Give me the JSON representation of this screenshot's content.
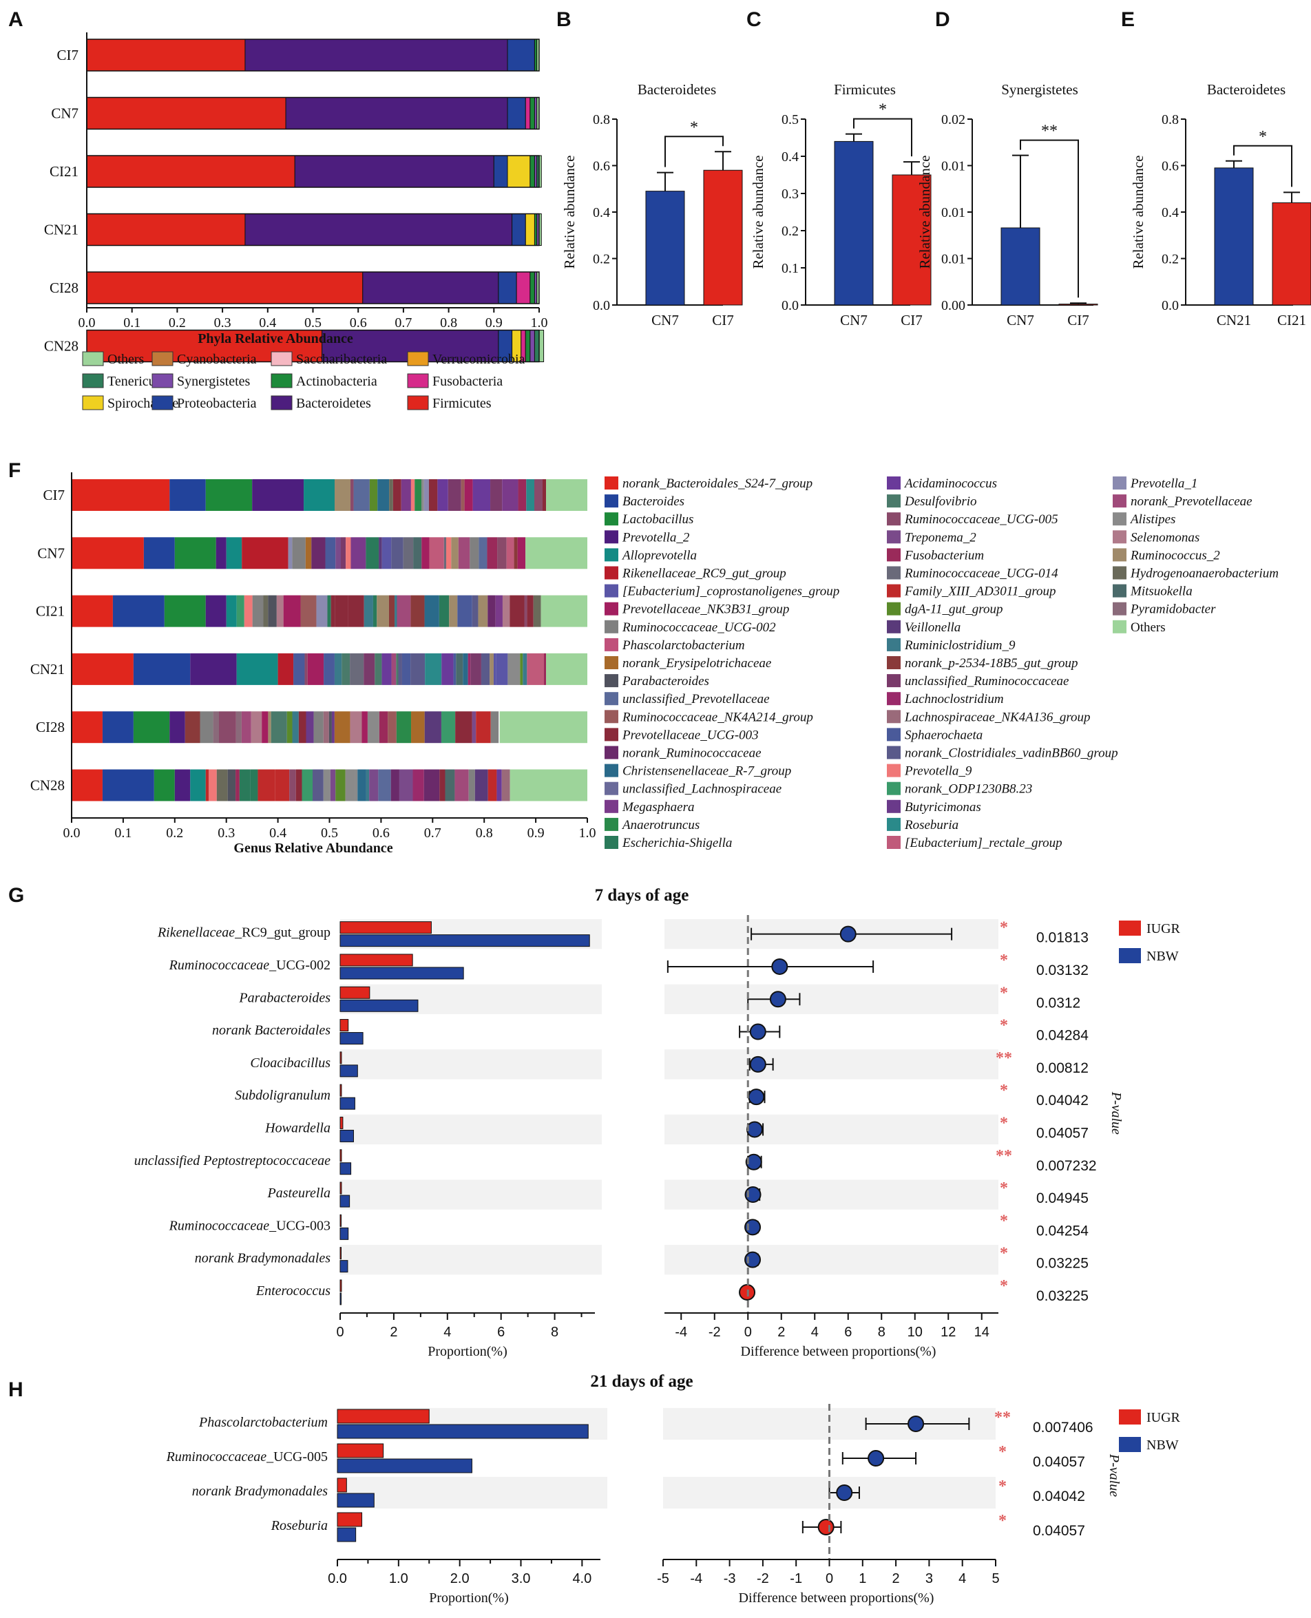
{
  "colors": {
    "red": "#e0261d",
    "blue": "#22439b",
    "purple": "#4d1e7e",
    "star": "#e06060",
    "Others": "#9dd49a",
    "Cyanobacteria": "#c07a3a",
    "Saccharibacteria": "#f5b8c2",
    "Verrucomicrobia": "#e89b1e",
    "Tenericutes": "#2f7d5a",
    "Synergistetes": "#7b4aa8",
    "Actinobacteria": "#1d8a3a",
    "Fusobacteria": "#d62a8a",
    "Spirochaetae": "#f0d020",
    "Proteobacteria": "#22439b",
    "Bacteroidetes": "#4d1e7e",
    "Firmicutes": "#e0261d"
  },
  "panel_letters": [
    "A",
    "B",
    "C",
    "D",
    "E",
    "F",
    "G",
    "H"
  ],
  "chart_data": [
    {
      "id": "A",
      "type": "bar",
      "orientation": "horizontal",
      "stacked": true,
      "xlabel": "Phyla Relative Abundance",
      "categories": [
        "CI7",
        "CN7",
        "CI21",
        "CN21",
        "CI28",
        "CN28"
      ],
      "xticks": [
        "0.0",
        "0.1",
        "0.2",
        "0.3",
        "0.4",
        "0.5",
        "0.6",
        "0.7",
        "0.8",
        "0.9",
        "1.0"
      ],
      "xlim": [
        0,
        1
      ],
      "series": [
        {
          "name": "Firmicutes",
          "values": [
            0.35,
            0.44,
            0.46,
            0.35,
            0.61,
            0.52
          ]
        },
        {
          "name": "Bacteroidetes",
          "values": [
            0.58,
            0.49,
            0.44,
            0.59,
            0.3,
            0.39
          ]
        },
        {
          "name": "Proteobacteria",
          "values": [
            0.06,
            0.04,
            0.03,
            0.03,
            0.04,
            0.03
          ]
        },
        {
          "name": "Spirochaetae",
          "values": [
            0.0,
            0.0,
            0.05,
            0.02,
            0.0,
            0.02
          ]
        },
        {
          "name": "Fusobacteria",
          "values": [
            0.0,
            0.01,
            0.0,
            0.0,
            0.03,
            0.01
          ]
        },
        {
          "name": "Actinobacteria",
          "values": [
            0.005,
            0.01,
            0.01,
            0.005,
            0.01,
            0.01
          ]
        },
        {
          "name": "Synergistetes",
          "values": [
            0.0,
            0.005,
            0.005,
            0.005,
            0.005,
            0.01
          ]
        },
        {
          "name": "Tenericutes",
          "values": [
            0.0,
            0.0,
            0.005,
            0.0,
            0.0,
            0.01
          ]
        },
        {
          "name": "Others",
          "values": [
            0.005,
            0.005,
            0.005,
            0.005,
            0.005,
            0.01
          ]
        }
      ],
      "legend": [
        "Others",
        "Cyanobacteria",
        "Saccharibacteria",
        "Verrucomicrobia",
        "Tenericutes",
        "Synergistetes",
        "Actinobacteria",
        "Fusobacteria",
        "Spirochaetae",
        "Proteobacteria",
        "Bacteroidetes",
        "Firmicutes"
      ]
    },
    {
      "id": "B",
      "type": "bar",
      "title": "Bacteroidetes",
      "ylabel": "Relative abundance",
      "categories": [
        "CN7",
        "CI7"
      ],
      "values": [
        0.49,
        0.58
      ],
      "errors": [
        0.08,
        0.08
      ],
      "ylim": [
        0,
        0.8
      ],
      "yticks": [
        "0.0",
        "0.2",
        "0.4",
        "0.6",
        "0.8"
      ],
      "significance": "*"
    },
    {
      "id": "C",
      "type": "bar",
      "title": "Firmicutes",
      "ylabel": "Relative abundance",
      "categories": [
        "CN7",
        "CI7"
      ],
      "values": [
        0.44,
        0.35
      ],
      "errors": [
        0.02,
        0.035
      ],
      "ylim": [
        0,
        0.5
      ],
      "yticks": [
        "0.0",
        "0.1",
        "0.2",
        "0.3",
        "0.4",
        "0.5"
      ],
      "significance": "*"
    },
    {
      "id": "D",
      "type": "bar",
      "title": "Synergistetes",
      "ylabel": "Relative abundance",
      "categories": [
        "CN7",
        "CI7"
      ],
      "values": [
        0.0083,
        0.0001
      ],
      "errors": [
        0.0078,
        0.0001
      ],
      "ylim": [
        0,
        0.02
      ],
      "yticks": [
        "0.00",
        "0.01",
        "0.01",
        "0.01",
        "0.02"
      ],
      "significance": "**"
    },
    {
      "id": "E",
      "type": "bar",
      "title": "Bacteroidetes",
      "ylabel": "Relative abundance",
      "categories": [
        "CN21",
        "CI21"
      ],
      "values": [
        0.59,
        0.44
      ],
      "errors": [
        0.03,
        0.045
      ],
      "ylim": [
        0,
        0.8
      ],
      "yticks": [
        "0.0",
        "0.2",
        "0.4",
        "0.6",
        "0.8"
      ],
      "significance": "*"
    },
    {
      "id": "F",
      "type": "bar",
      "orientation": "horizontal",
      "stacked": true,
      "xlabel": "Genus Relative Abundance",
      "categories": [
        "CI7",
        "CN7",
        "CI21",
        "CN21",
        "CI28",
        "CN28"
      ],
      "xticks": [
        "0.0",
        "0.1",
        "0.2",
        "0.3",
        "0.4",
        "0.5",
        "0.6",
        "0.7",
        "0.8",
        "0.9",
        "1.0"
      ],
      "xlim": [
        0,
        1
      ],
      "series": [
        {
          "name": "norank_Bacteroidales_S24-7_group",
          "values": [
            0.19,
            0.14,
            0.08,
            0.12,
            0.06,
            0.06
          ]
        },
        {
          "name": "Bacteroides",
          "values": [
            0.07,
            0.06,
            0.1,
            0.11,
            0.06,
            0.1
          ]
        },
        {
          "name": "Lactobacillus",
          "values": [
            0.09,
            0.08,
            0.08,
            0.0,
            0.07,
            0.04
          ]
        },
        {
          "name": "Prevotella_2",
          "values": [
            0.1,
            0.02,
            0.04,
            0.09,
            0.03,
            0.03
          ]
        },
        {
          "name": "Alloprevotella",
          "values": [
            0.06,
            0.03,
            0.02,
            0.08,
            0.0,
            0.03
          ]
        },
        {
          "name": "Rikenellaceae_RC9_gut_group",
          "values": [
            0.0,
            0.09,
            0.0,
            0.03,
            0.0,
            0.0
          ]
        }
      ],
      "genus_other_fraction": [
        0.08,
        0.12,
        0.09,
        0.08,
        0.17,
        0.15
      ],
      "legend": [
        "norank_Bacteroidales_S24-7_group",
        "Bacteroides",
        "Lactobacillus",
        "Prevotella_2",
        "Alloprevotella",
        "Rikenellaceae_RC9_gut_group",
        "[Eubacterium]_coprostanoligenes_group",
        "Prevotellaceae_NK3B31_group",
        "Ruminococcaceae_UCG-002",
        "Phascolarctobacterium",
        "norank_Erysipelotrichaceae",
        "Parabacteroides",
        "unclassified_Prevotellaceae",
        "Ruminococcaceae_NK4A214_group",
        "Prevotellaceae_UCG-003",
        "norank_Ruminococcaceae",
        "Christensenellaceae_R-7_group",
        "unclassified_Lachnospiraceae",
        "Megasphaera",
        "Anaerotruncus",
        "Escherichia-Shigella",
        "Acidaminococcus",
        "Desulfovibrio",
        "Ruminococcaceae_UCG-005",
        "Treponema_2",
        "Fusobacterium",
        "Ruminococcaceae_UCG-014",
        "Family_XIII_AD3011_group",
        "dgA-11_gut_group",
        "Veillonella",
        "Ruminiclostridium_9",
        "norank_p-2534-18B5_gut_group",
        "unclassified_Ruminococcaceae",
        "Lachnoclostridium",
        "Lachnospiraceae_NK4A136_group",
        "Sphaerochaeta",
        "norank_Clostridiales_vadinBB60_group",
        "Prevotella_9",
        "norank_ODP1230B8.23",
        "Butyricimonas",
        "Roseburia",
        "[Eubacterium]_rectale_group",
        "Prevotella_1",
        "norank_Prevotellaceae",
        "Alistipes",
        "Selenomonas",
        "Ruminococcus_2",
        "Hydrogenoanaerobacterium",
        "Mitsuokella",
        "Pyramidobacter",
        "Others"
      ],
      "legend_colors": [
        "#e0261d",
        "#22439b",
        "#1d8a3a",
        "#4d1e7e",
        "#138a84",
        "#b81d2a",
        "#5a56a6",
        "#a31f5f",
        "#808080",
        "#c0507a",
        "#a86a2a",
        "#50525e",
        "#5a6a9a",
        "#9a5a5a",
        "#8a2a3a",
        "#6a2a6a",
        "#2a6a8a",
        "#6a6a9a",
        "#7a3a8a",
        "#2a8a4a",
        "#2a7a5a",
        "#6a3a9a",
        "#4a7a6a",
        "#8a4a6a",
        "#7a4a8a",
        "#9a2a5a",
        "#6a6a7a",
        "#c02a2a",
        "#5a8a2a",
        "#5a3a7a",
        "#3a7a8a",
        "#8a3a3a",
        "#7a3a6a",
        "#9a2a6a",
        "#9a6a7a",
        "#4a5a9a",
        "#5a5a8a",
        "#f07878",
        "#3a9a6a",
        "#6a3a8a",
        "#2a8a8a",
        "#c05a7a",
        "#8a8ab0",
        "#a04a7a",
        "#8a8a8a",
        "#b07a8a",
        "#a08a6a",
        "#6a6a5a",
        "#4a6a6a",
        "#8a6a7a",
        "#9dd49a"
      ]
    },
    {
      "id": "G",
      "type": "bar",
      "title": "7 days of age",
      "xlabel_left": "Proportion(%)",
      "xlabel_right": "Difference between proportions(%)",
      "ylabel_right": "P-value",
      "groups": [
        "IUGR",
        "NBW"
      ],
      "taxa": [
        {
          "italic": "Rikenellaceae",
          "plain": "_RC9_gut_group",
          "iugr": 3.4,
          "nbw": 9.3,
          "diff": 6.0,
          "lo": 0.2,
          "hi": 12.2,
          "p": "0.01813",
          "sig": "*"
        },
        {
          "italic": "Ruminococcaceae",
          "plain": "_UCG-002",
          "iugr": 2.7,
          "nbw": 4.6,
          "diff": 1.9,
          "lo": -4.8,
          "hi": 7.5,
          "p": "0.03132",
          "sig": "*"
        },
        {
          "italic": "Parabacteroides",
          "plain": "",
          "iugr": 1.1,
          "nbw": 2.9,
          "diff": 1.8,
          "lo": 0.0,
          "hi": 3.1,
          "p": "0.0312",
          "sig": "*"
        },
        {
          "italic": "norank Bacteroidales",
          "plain": "",
          "iugr": 0.3,
          "nbw": 0.85,
          "diff": 0.6,
          "lo": -0.5,
          "hi": 1.9,
          "p": "0.04284",
          "sig": "*"
        },
        {
          "italic": "Cloacibacillus",
          "plain": "",
          "iugr": 0.05,
          "nbw": 0.65,
          "diff": 0.6,
          "lo": 0.1,
          "hi": 1.5,
          "p": "0.00812",
          "sig": "**"
        },
        {
          "italic": "Subdoligranulum",
          "plain": "",
          "iugr": 0.05,
          "nbw": 0.55,
          "diff": 0.5,
          "lo": 0.1,
          "hi": 1.0,
          "p": "0.04042",
          "sig": "*"
        },
        {
          "italic": "Howardella",
          "plain": "",
          "iugr": 0.1,
          "nbw": 0.5,
          "diff": 0.4,
          "lo": 0.0,
          "hi": 0.9,
          "p": "0.04057",
          "sig": "*"
        },
        {
          "italic": "unclassified Peptostreptococcaceae",
          "plain": "",
          "iugr": 0.05,
          "nbw": 0.4,
          "diff": 0.35,
          "lo": 0.0,
          "hi": 0.8,
          "p": "0.007232",
          "sig": "**"
        },
        {
          "italic": "Pasteurella",
          "plain": "",
          "iugr": 0.05,
          "nbw": 0.35,
          "diff": 0.3,
          "lo": 0.0,
          "hi": 0.7,
          "p": "0.04945",
          "sig": "*"
        },
        {
          "italic": "Ruminococcaceae",
          "plain": "_UCG-003",
          "iugr": 0.02,
          "nbw": 0.3,
          "diff": 0.28,
          "lo": 0.0,
          "hi": 0.6,
          "p": "0.04254",
          "sig": "*"
        },
        {
          "italic": "norank Bradymonadales",
          "plain": "",
          "iugr": 0.0,
          "nbw": 0.28,
          "diff": 0.28,
          "lo": 0.0,
          "hi": 0.6,
          "p": "0.03225",
          "sig": "*"
        },
        {
          "italic": "Enterococcus",
          "plain": "",
          "iugr": 0.05,
          "nbw": 0.0,
          "diff": -0.05,
          "lo": -0.1,
          "hi": 0.0,
          "p": "0.03225",
          "sig": "*"
        }
      ],
      "xlim_left": [
        0,
        9.5
      ],
      "xticks_left": [
        "0",
        "2",
        "4",
        "6",
        "8"
      ],
      "xlim_right": [
        -5,
        15
      ],
      "xticks_right": [
        "-4",
        "-2",
        "0",
        "2",
        "4",
        "6",
        "8",
        "10",
        "12",
        "14"
      ]
    },
    {
      "id": "H",
      "type": "bar",
      "title": "21 days of age",
      "xlabel_left": "Proportion(%)",
      "xlabel_right": "Difference between proportions(%)",
      "ylabel_right": "P-value",
      "groups": [
        "IUGR",
        "NBW"
      ],
      "taxa": [
        {
          "italic": "Phascolarctobacterium",
          "plain": "",
          "iugr": 1.5,
          "nbw": 4.1,
          "diff": 2.6,
          "lo": 1.1,
          "hi": 4.2,
          "p": "0.007406",
          "sig": "**"
        },
        {
          "italic": "Ruminococcaceae",
          "plain": "_UCG-005",
          "iugr": 0.75,
          "nbw": 2.2,
          "diff": 1.4,
          "lo": 0.4,
          "hi": 2.6,
          "p": "0.04057",
          "sig": "*"
        },
        {
          "italic": "norank Bradymonadales",
          "plain": "",
          "iugr": 0.15,
          "nbw": 0.6,
          "diff": 0.45,
          "lo": 0.0,
          "hi": 0.9,
          "p": "0.04042",
          "sig": "*"
        },
        {
          "italic": "Roseburia",
          "plain": "",
          "iugr": 0.4,
          "nbw": 0.3,
          "diff": -0.1,
          "lo": -0.8,
          "hi": 0.35,
          "p": "0.04057",
          "sig": "*"
        }
      ],
      "xlim_left": [
        0,
        4.3
      ],
      "xticks_left": [
        "0.0",
        "1.0",
        "2.0",
        "3.0",
        "4.0"
      ],
      "xlim_right": [
        -5,
        5
      ],
      "xticks_right": [
        "-5",
        "-4",
        "-3",
        "-2",
        "-1",
        "0",
        "1",
        "2",
        "3",
        "4",
        "5"
      ]
    }
  ]
}
